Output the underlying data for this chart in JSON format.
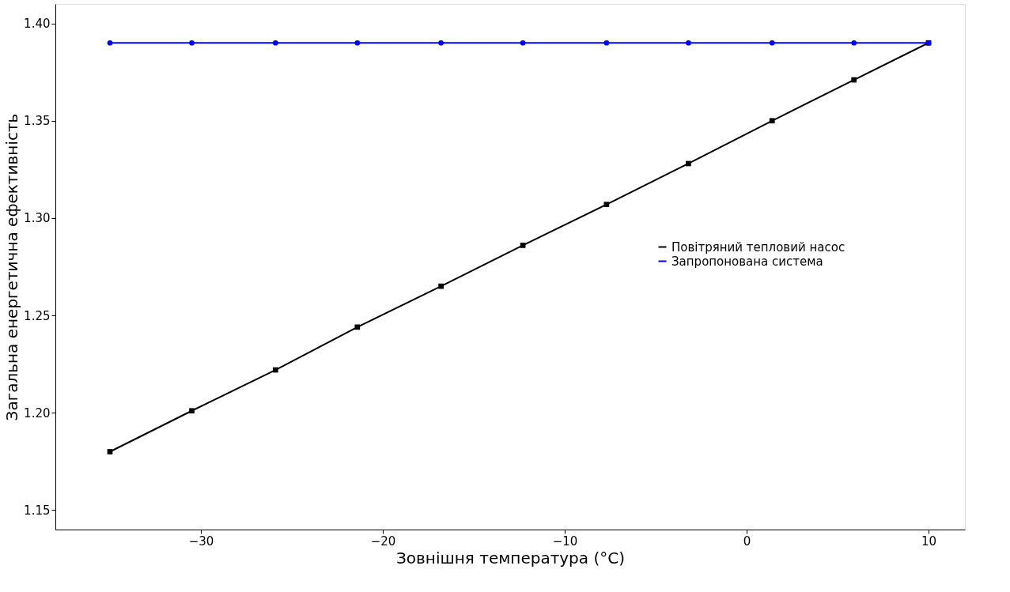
{
  "chart_data": {
    "type": "line",
    "xlabel": "Зовнішня температура (°C)",
    "ylabel": "Загальна енергетична ефективність",
    "xlim": [
      -38,
      12
    ],
    "xticks": [
      -30,
      -20,
      -10,
      0,
      10
    ],
    "ylim": [
      1.14,
      1.41
    ],
    "yticks": [
      1.15,
      {
        "value": 1.2,
        "label": "1.20"
      },
      1.25,
      {
        "value": 1.3,
        "label": "1.30"
      },
      1.35,
      {
        "value": 1.4,
        "label": "1.40"
      }
    ],
    "grid": false,
    "legend": "right",
    "line_style": "solid",
    "series": [
      {
        "name": "Повітряний тепловий насос",
        "color": "#000000",
        "marker": "square",
        "x": [
          -35,
          -30.5,
          -25.9,
          -21.4,
          -16.8,
          -12.3,
          -7.7,
          -3.2,
          1.4,
          5.9,
          10
        ],
        "values": [
          1.18,
          1.201,
          1.222,
          1.244,
          1.265,
          1.286,
          1.307,
          1.328,
          1.35,
          1.371,
          1.39
        ]
      },
      {
        "name": "Запропонована система",
        "color": "#0000ff",
        "marker": "circle",
        "x": [
          -35,
          -30.5,
          -25.9,
          -21.4,
          -16.8,
          -12.3,
          -7.7,
          -3.2,
          1.4,
          5.9,
          10
        ],
        "values": [
          1.39,
          1.39,
          1.39,
          1.39,
          1.39,
          1.39,
          1.39,
          1.39,
          1.39,
          1.39,
          1.39
        ]
      }
    ]
  }
}
